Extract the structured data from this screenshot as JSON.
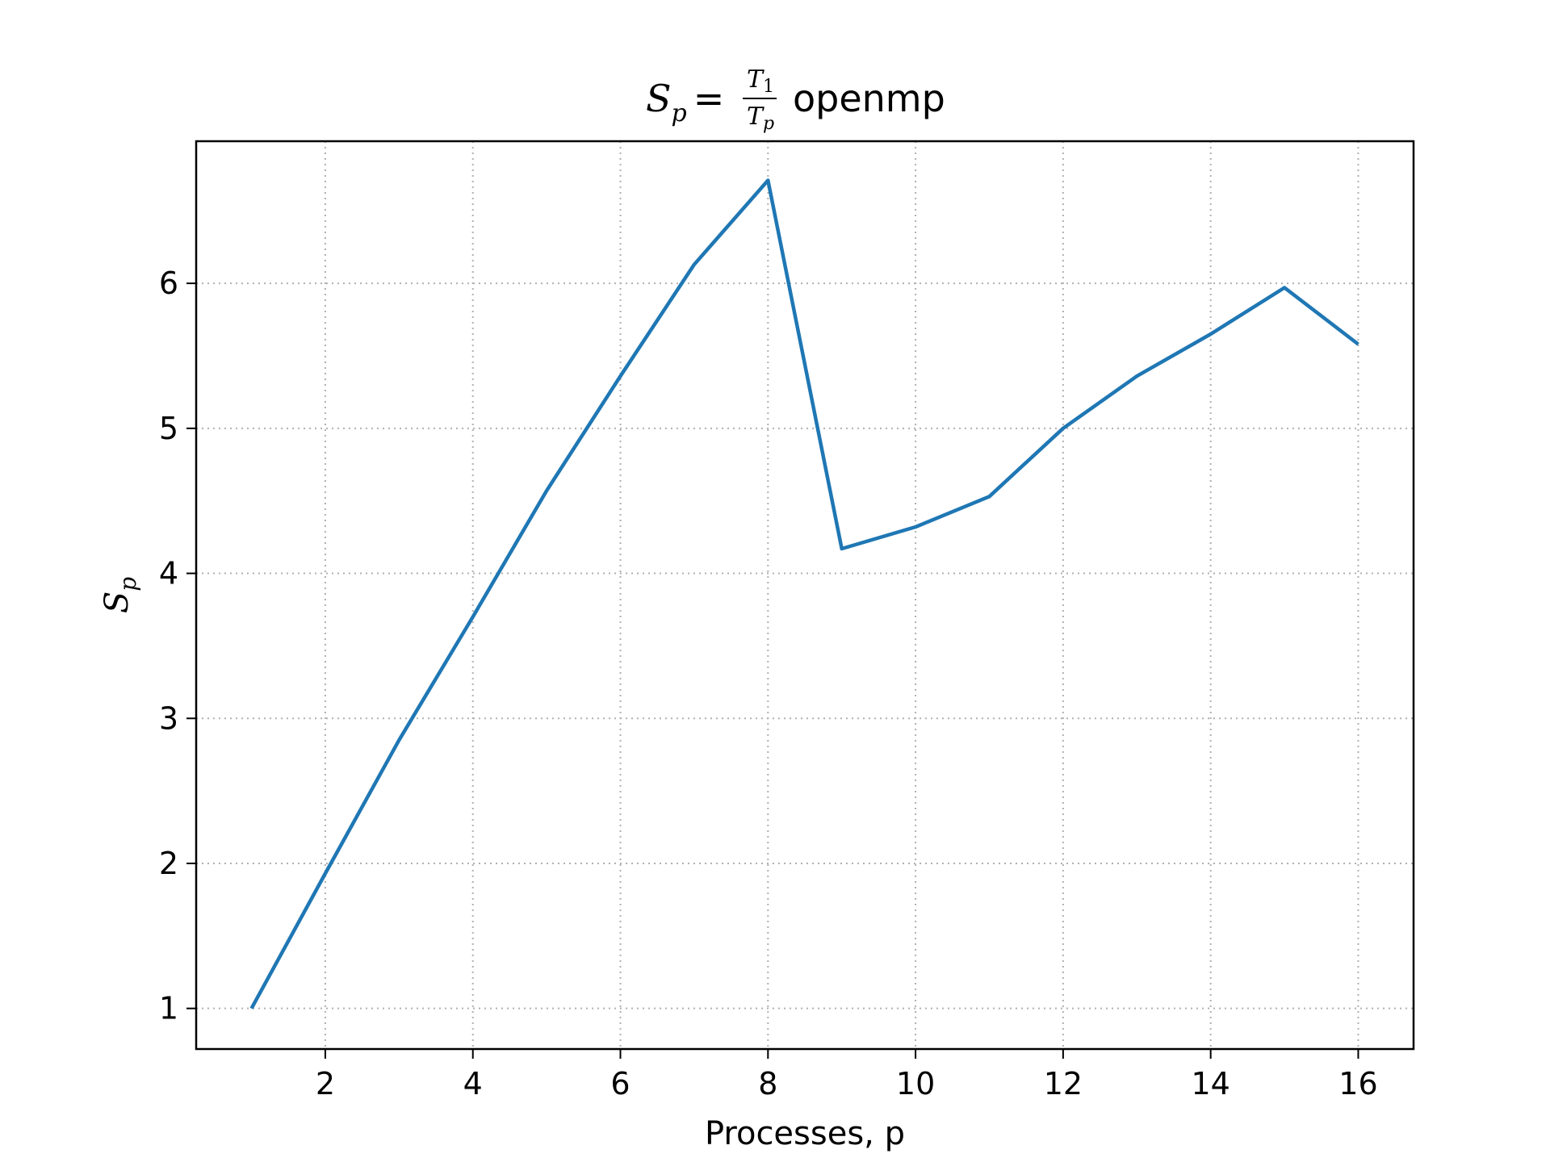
{
  "chart_data": {
    "type": "line",
    "title": {
      "S": "S",
      "p": "p",
      "eq": "=",
      "T": "T",
      "one": "1",
      "word": "openmp"
    },
    "xlabel": "Processes, p",
    "ylabel": {
      "S": "S",
      "p": "p"
    },
    "xlim": [
      0.25,
      16.75
    ],
    "ylim": [
      0.72,
      6.98
    ],
    "xticks": [
      2,
      4,
      6,
      8,
      10,
      12,
      14,
      16
    ],
    "yticks": [
      1,
      2,
      3,
      4,
      5,
      6
    ],
    "grid": true,
    "series": [
      {
        "color": "#1f77b4",
        "x": [
          1,
          2,
          3,
          4,
          5,
          6,
          7,
          8,
          9,
          10,
          11,
          12,
          13,
          14,
          15,
          16
        ],
        "y": [
          1.0,
          1.93,
          2.85,
          3.7,
          4.57,
          5.36,
          6.13,
          6.71,
          4.17,
          4.32,
          4.53,
          5.0,
          5.36,
          5.65,
          5.97,
          5.58
        ]
      }
    ]
  }
}
